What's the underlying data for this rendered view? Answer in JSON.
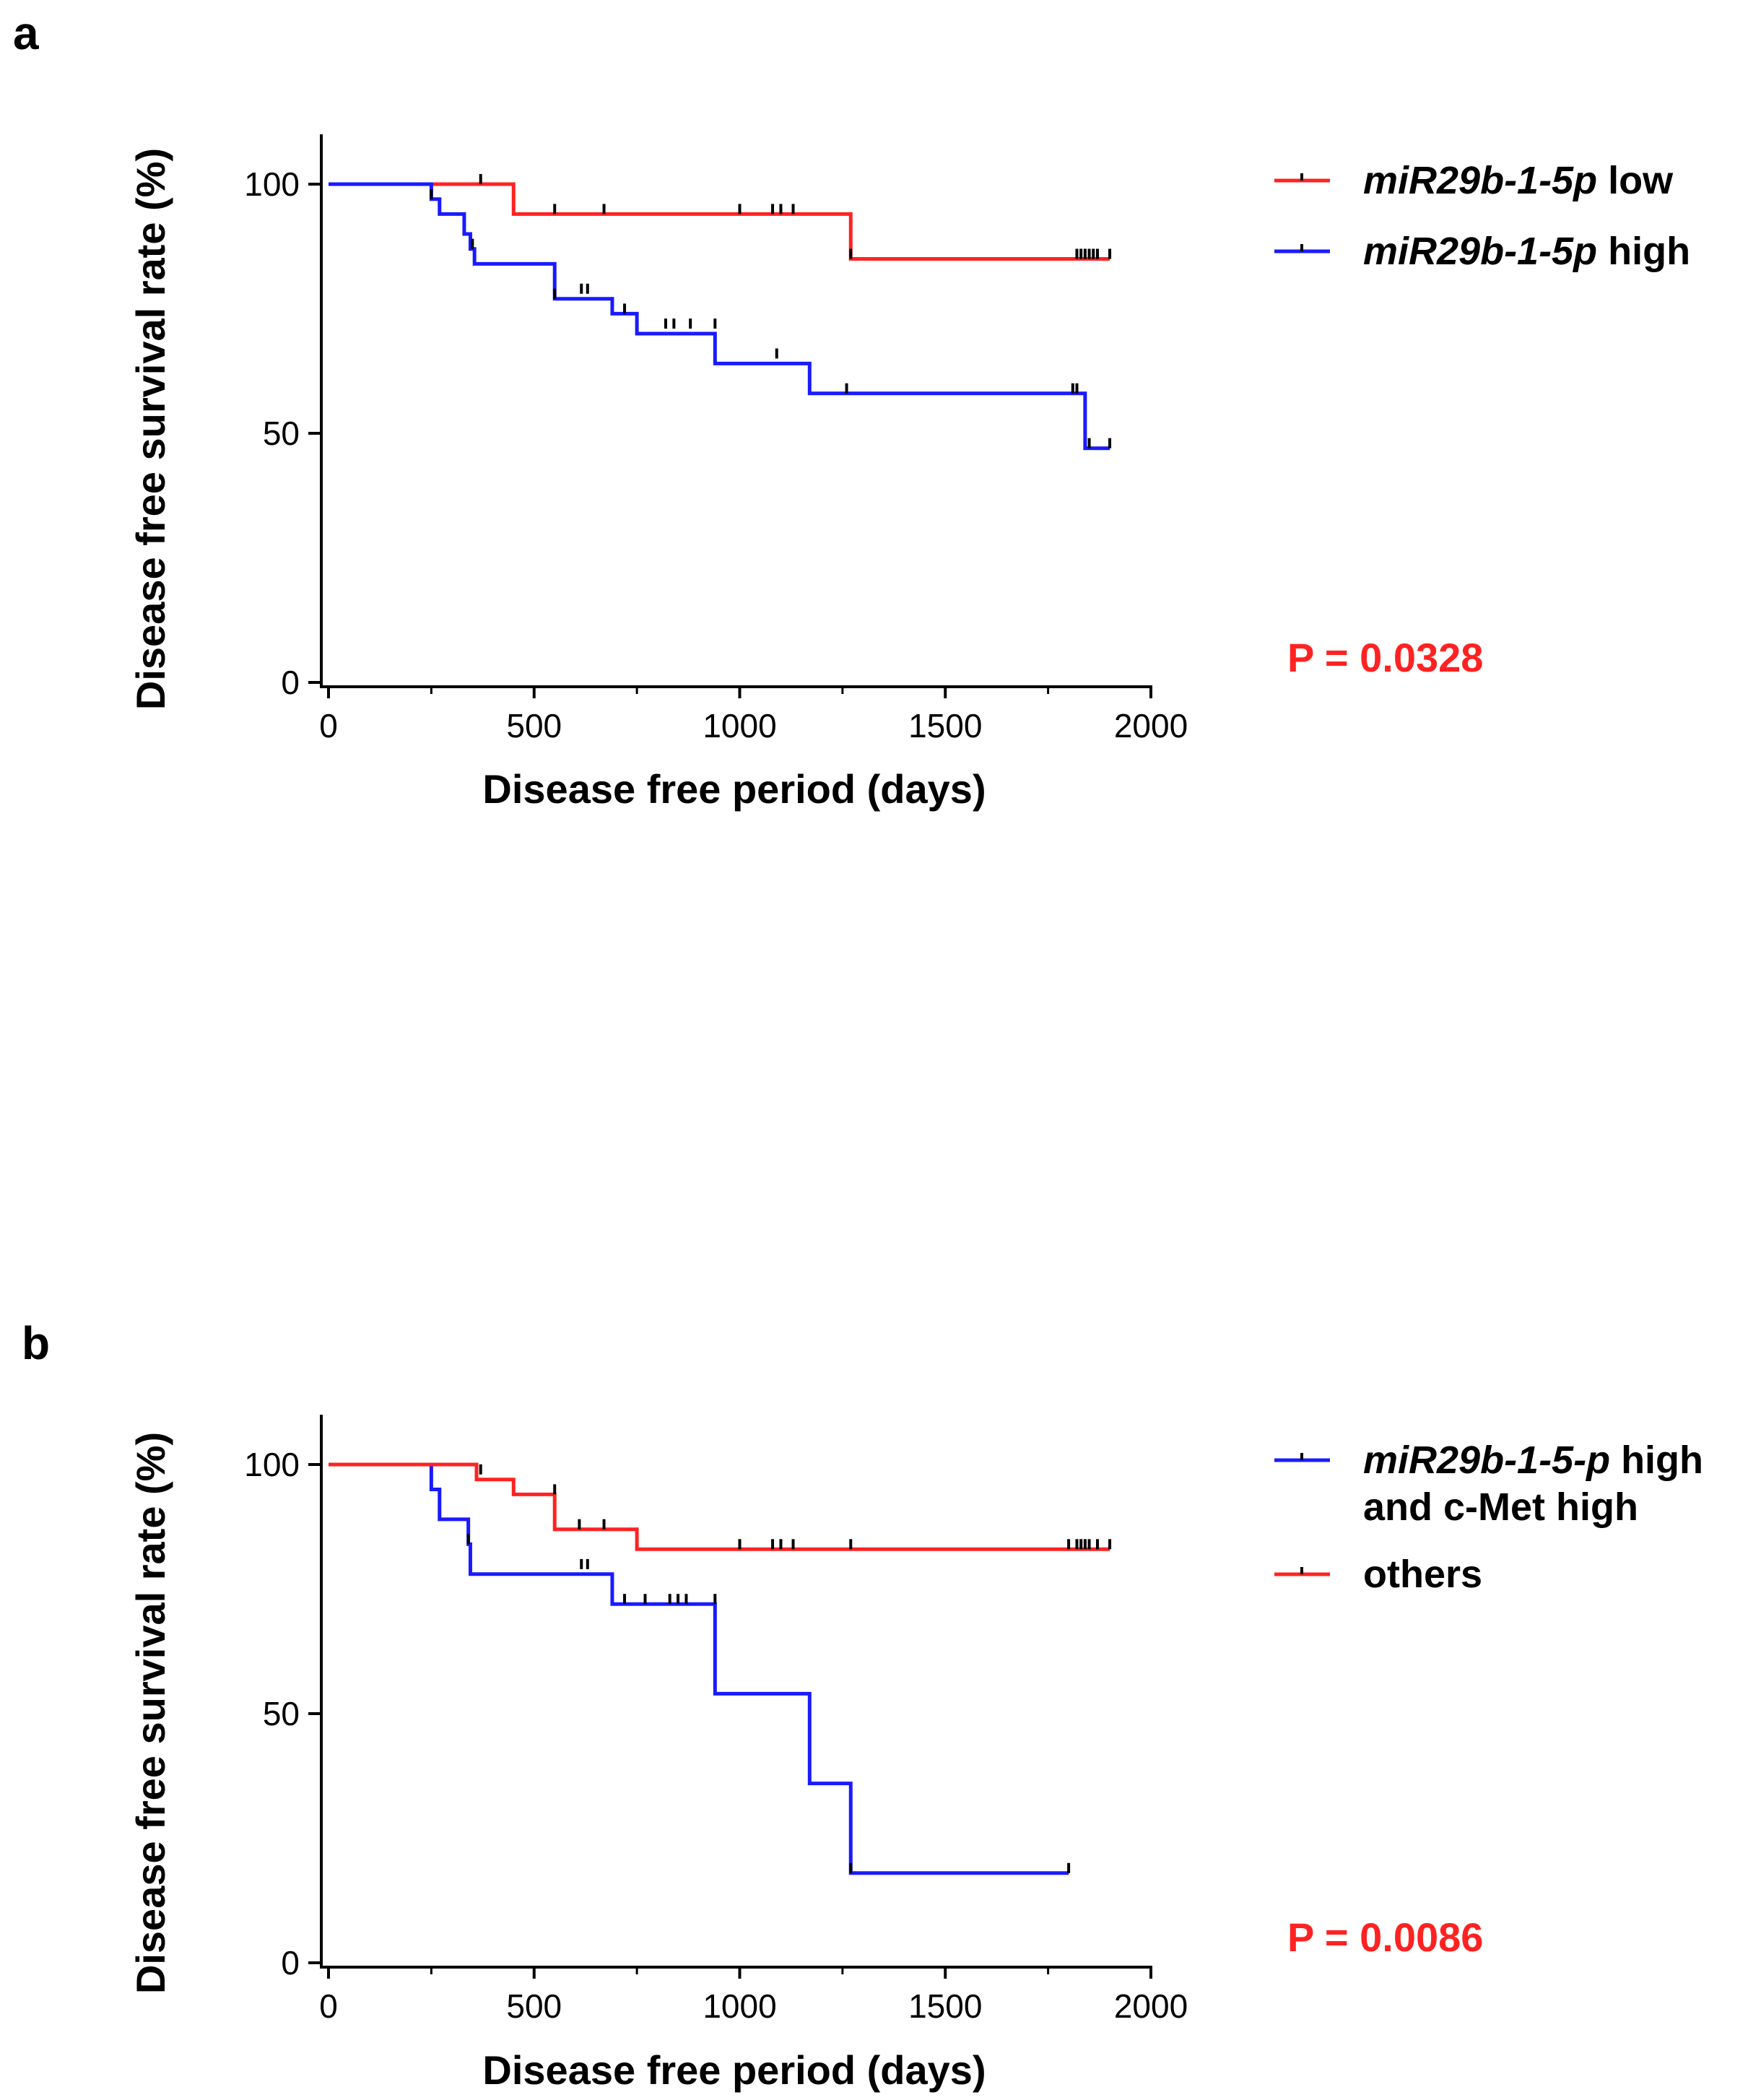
{
  "colors": {
    "low": "#ff2222",
    "high": "#1a1aff",
    "axis": "#000000"
  },
  "chart_data": [
    {
      "type": "line",
      "subtype": "kaplan-meier",
      "panel_label": "a",
      "title": "",
      "xlabel": "Disease free period (days)",
      "ylabel": "Disease free survival rate (%)",
      "xlim": [
        0,
        2000
      ],
      "ylim": [
        0,
        110
      ],
      "xticks": [
        "0",
        "500",
        "1000",
        "1500",
        "2000"
      ],
      "yticks": [
        "0",
        "50",
        "100"
      ],
      "p_value": "P = 0.0328",
      "legend_position": "top-right",
      "series": [
        {
          "name": "miR29b-1-5p low",
          "legend": {
            "italic": "miR29b-1-5p",
            "rest": " low"
          },
          "color": "#ff2222",
          "steps": [
            [
              0,
              100
            ],
            [
              450,
              94
            ],
            [
              1270,
              85
            ],
            [
              1900,
              85
            ]
          ],
          "censors": [
            [
              370,
              100
            ],
            [
              550,
              94
            ],
            [
              670,
              94
            ],
            [
              1000,
              94
            ],
            [
              1080,
              94
            ],
            [
              1100,
              94
            ],
            [
              1130,
              94
            ],
            [
              1270,
              85
            ],
            [
              1820,
              85
            ],
            [
              1830,
              85
            ],
            [
              1840,
              85
            ],
            [
              1850,
              85
            ],
            [
              1860,
              85
            ],
            [
              1870,
              85
            ],
            [
              1900,
              85
            ]
          ]
        },
        {
          "name": "miR29b-1-5p high",
          "legend": {
            "italic": "miR29b-1-5p",
            "rest": " high"
          },
          "color": "#1a1aff",
          "steps": [
            [
              0,
              100
            ],
            [
              250,
              97
            ],
            [
              270,
              94
            ],
            [
              330,
              90
            ],
            [
              345,
              87
            ],
            [
              355,
              84
            ],
            [
              550,
              77
            ],
            [
              690,
              74
            ],
            [
              750,
              70
            ],
            [
              940,
              64
            ],
            [
              1170,
              58
            ],
            [
              1840,
              47
            ],
            [
              1900,
              47
            ]
          ],
          "censors": [
            [
              250,
              97
            ],
            [
              350,
              87
            ],
            [
              550,
              77
            ],
            [
              615,
              78
            ],
            [
              630,
              78
            ],
            [
              720,
              74
            ],
            [
              820,
              71
            ],
            [
              840,
              71
            ],
            [
              880,
              71
            ],
            [
              940,
              71
            ],
            [
              1090,
              65
            ],
            [
              1260,
              58
            ],
            [
              1810,
              58
            ],
            [
              1820,
              58
            ],
            [
              1850,
              47
            ],
            [
              1900,
              47
            ]
          ]
        }
      ]
    },
    {
      "type": "line",
      "subtype": "kaplan-meier",
      "panel_label": "b",
      "title": "",
      "xlabel": "Disease free period (days)",
      "ylabel": "Disease free survival rate (%)",
      "xlim": [
        0,
        2000
      ],
      "ylim": [
        0,
        110
      ],
      "xticks": [
        "0",
        "500",
        "1000",
        "1500",
        "2000"
      ],
      "yticks": [
        "0",
        "50",
        "100"
      ],
      "p_value": "P = 0.0086",
      "legend_position": "top-right",
      "series": [
        {
          "name": "miR29b-1-5-p high and c-Met high",
          "legend": {
            "italic": "miR29b-1-5-p",
            "rest": " high",
            "line2": "and c-Met high"
          },
          "color": "#1a1aff",
          "steps": [
            [
              0,
              100
            ],
            [
              250,
              95
            ],
            [
              270,
              89
            ],
            [
              340,
              84
            ],
            [
              345,
              78
            ],
            [
              690,
              72
            ],
            [
              940,
              54
            ],
            [
              1170,
              36
            ],
            [
              1270,
              18
            ],
            [
              1800,
              18
            ]
          ],
          "censors": [
            [
              340,
              84
            ],
            [
              615,
              79
            ],
            [
              630,
              79
            ],
            [
              720,
              72
            ],
            [
              770,
              72
            ],
            [
              830,
              72
            ],
            [
              850,
              72
            ],
            [
              870,
              72
            ],
            [
              940,
              72
            ],
            [
              1270,
              18
            ],
            [
              1800,
              18
            ]
          ]
        },
        {
          "name": "others",
          "legend": {
            "italic": "",
            "rest": "others"
          },
          "color": "#ff2222",
          "steps": [
            [
              0,
              100
            ],
            [
              360,
              97
            ],
            [
              450,
              94
            ],
            [
              550,
              87
            ],
            [
              750,
              83
            ],
            [
              1900,
              83
            ]
          ],
          "censors": [
            [
              370,
              98
            ],
            [
              550,
              94
            ],
            [
              610,
              87
            ],
            [
              670,
              87
            ],
            [
              1000,
              83
            ],
            [
              1080,
              83
            ],
            [
              1100,
              83
            ],
            [
              1130,
              83
            ],
            [
              1270,
              83
            ],
            [
              1800,
              83
            ],
            [
              1820,
              83
            ],
            [
              1830,
              83
            ],
            [
              1840,
              83
            ],
            [
              1850,
              83
            ],
            [
              1870,
              83
            ],
            [
              1900,
              83
            ]
          ]
        }
      ]
    }
  ]
}
